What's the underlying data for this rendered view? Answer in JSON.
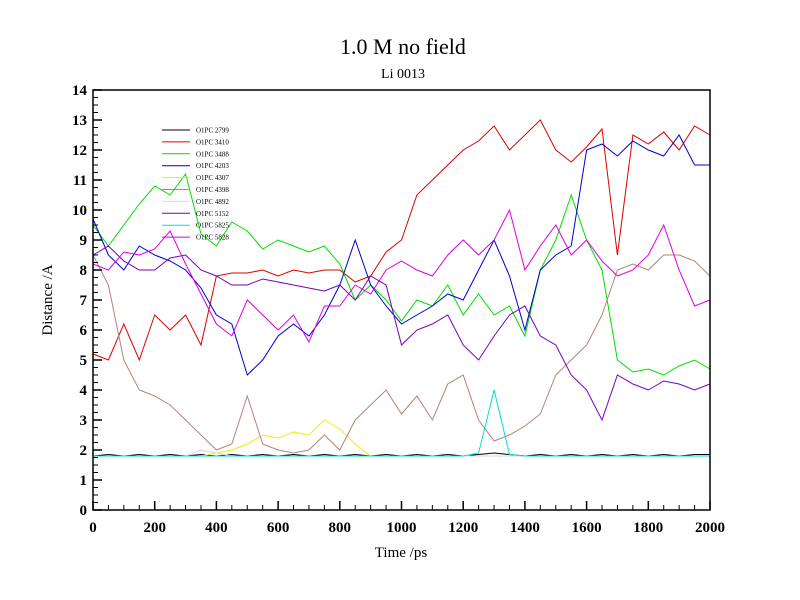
{
  "chart_data": {
    "type": "line",
    "title": "1.0 M no field",
    "subtitle": "Li 0013",
    "xlabel": "Time /ps",
    "ylabel": "Distance /A",
    "xlim": [
      0,
      2000
    ],
    "ylim": [
      0,
      14
    ],
    "xticks": [
      0,
      200,
      400,
      600,
      800,
      1000,
      1200,
      1400,
      1600,
      1800,
      2000
    ],
    "yticks": [
      0,
      1,
      2,
      3,
      4,
      5,
      6,
      7,
      8,
      9,
      10,
      11,
      12,
      13,
      14
    ],
    "grid": false,
    "legend_position": "top-left",
    "x": [
      0,
      50,
      100,
      150,
      200,
      250,
      300,
      350,
      400,
      450,
      500,
      550,
      600,
      650,
      700,
      750,
      800,
      850,
      900,
      950,
      1000,
      1050,
      1100,
      1150,
      1200,
      1250,
      1300,
      1350,
      1400,
      1450,
      1500,
      1550,
      1600,
      1650,
      1700,
      1750,
      1800,
      1850,
      1900,
      1950,
      2000
    ],
    "series": [
      {
        "name": "O1PC 2799",
        "color": "#000000",
        "values": [
          1.8,
          1.85,
          1.8,
          1.85,
          1.8,
          1.85,
          1.8,
          1.85,
          1.8,
          1.85,
          1.8,
          1.85,
          1.8,
          1.85,
          1.8,
          1.85,
          1.8,
          1.85,
          1.8,
          1.85,
          1.8,
          1.85,
          1.8,
          1.85,
          1.8,
          1.85,
          1.9,
          1.85,
          1.8,
          1.85,
          1.8,
          1.85,
          1.8,
          1.85,
          1.8,
          1.85,
          1.8,
          1.85,
          1.8,
          1.85,
          1.85
        ]
      },
      {
        "name": "O1PC 3410",
        "color": "#dd0000",
        "values": [
          5.2,
          5.0,
          6.2,
          5.0,
          6.5,
          6.0,
          6.5,
          5.5,
          7.8,
          7.9,
          7.9,
          8.0,
          7.8,
          8.0,
          7.9,
          8.0,
          8.0,
          7.6,
          7.8,
          8.6,
          9.0,
          10.5,
          11.0,
          11.5,
          12.0,
          12.3,
          12.8,
          12.0,
          12.5,
          13.0,
          12.0,
          11.6,
          12.1,
          12.7,
          8.5,
          12.5,
          12.2,
          12.6,
          12.0,
          12.8,
          12.5
        ]
      },
      {
        "name": "O1PC 3488",
        "color": "#00dd00",
        "values": [
          9.5,
          8.8,
          9.5,
          10.2,
          10.8,
          10.5,
          11.2,
          9.2,
          8.8,
          9.6,
          9.3,
          8.7,
          9.0,
          8.8,
          8.6,
          8.8,
          8.2,
          7.0,
          7.5,
          7.0,
          6.3,
          7.0,
          6.8,
          7.5,
          6.5,
          7.2,
          6.5,
          6.8,
          5.8,
          8.0,
          9.0,
          10.5,
          9.0,
          8.0,
          5.0,
          4.6,
          4.7,
          4.5,
          4.8,
          5.0,
          4.7
        ]
      },
      {
        "name": "O1PC 4203",
        "color": "#0000cc",
        "values": [
          9.7,
          8.5,
          8.0,
          8.8,
          8.5,
          8.3,
          8.0,
          7.4,
          6.5,
          6.2,
          4.5,
          5.0,
          5.8,
          6.2,
          5.8,
          6.5,
          7.5,
          9.0,
          7.5,
          6.8,
          6.2,
          6.5,
          6.8,
          7.2,
          7.0,
          8.0,
          9.0,
          7.8,
          6.0,
          8.0,
          8.5,
          8.8,
          12.0,
          12.2,
          11.8,
          12.3,
          12.0,
          11.8,
          12.5,
          11.5,
          11.5
        ]
      },
      {
        "name": "O1PC 4307",
        "color": "#eeee00",
        "values": [
          1.8,
          1.8,
          1.8,
          1.8,
          1.8,
          1.8,
          1.8,
          1.8,
          1.9,
          2.0,
          2.2,
          2.5,
          2.4,
          2.6,
          2.5,
          3.0,
          2.7,
          2.2,
          1.8,
          1.8,
          1.8,
          1.8,
          1.8,
          1.8,
          1.8,
          1.8,
          1.8,
          1.8,
          1.8,
          1.8,
          1.8,
          1.8,
          1.8,
          1.8,
          1.8,
          1.8,
          1.8,
          1.8,
          1.8,
          1.8,
          1.8
        ]
      },
      {
        "name": "O1PC 4398",
        "color": "#b8807a",
        "values": [
          8.5,
          7.5,
          5.0,
          4.0,
          3.8,
          3.5,
          3.0,
          2.5,
          2.0,
          2.2,
          3.8,
          2.2,
          2.0,
          1.9,
          2.0,
          2.5,
          2.0,
          3.0,
          3.5,
          4.0,
          3.2,
          3.8,
          3.0,
          4.2,
          4.5,
          3.0,
          2.3,
          2.5,
          2.8,
          3.2,
          4.5,
          5.0,
          5.5,
          6.5,
          8.0,
          8.2,
          8.0,
          8.5,
          8.5,
          8.3,
          7.8
        ]
      },
      {
        "name": "O1PC 4892",
        "color": "#d8d8d8",
        "values": [
          1.8,
          1.8,
          1.8,
          1.8,
          1.8,
          1.8,
          1.8,
          2.0,
          1.9,
          1.8,
          1.8,
          1.8,
          1.8,
          1.8,
          1.8,
          1.8,
          1.8,
          1.8,
          1.8,
          1.8,
          1.8,
          1.8,
          1.8,
          1.8,
          1.8,
          1.8,
          1.8,
          1.8,
          1.8,
          1.8,
          1.8,
          1.8,
          1.8,
          1.8,
          1.8,
          1.8,
          1.8,
          1.8,
          1.8,
          1.8,
          1.8
        ]
      },
      {
        "name": "O1PC 5152",
        "color": "#7700bb",
        "values": [
          8.5,
          8.8,
          8.3,
          8.0,
          8.0,
          8.4,
          8.5,
          8.0,
          7.8,
          7.5,
          7.5,
          7.7,
          7.6,
          7.5,
          7.4,
          7.3,
          7.5,
          7.0,
          7.8,
          7.5,
          5.5,
          6.0,
          6.2,
          6.5,
          5.5,
          5.0,
          5.8,
          6.5,
          6.8,
          5.8,
          5.5,
          4.5,
          4.0,
          3.0,
          4.5,
          4.2,
          4.0,
          4.3,
          4.2,
          4.0,
          4.2
        ]
      },
      {
        "name": "O1PC 5825",
        "color": "#00dddd",
        "values": [
          1.8,
          1.8,
          1.8,
          1.8,
          1.8,
          1.8,
          1.8,
          1.8,
          1.8,
          1.8,
          1.8,
          1.8,
          1.8,
          1.8,
          1.8,
          1.8,
          1.8,
          1.8,
          1.8,
          1.8,
          1.8,
          1.8,
          1.8,
          1.8,
          1.8,
          1.9,
          4.0,
          1.85,
          1.8,
          1.8,
          1.8,
          1.8,
          1.8,
          1.8,
          1.8,
          1.8,
          1.8,
          1.8,
          1.8,
          1.8,
          1.8
        ]
      },
      {
        "name": "O1PC 5828",
        "color": "#dd00dd",
        "values": [
          8.2,
          8.0,
          8.6,
          8.5,
          8.7,
          9.3,
          8.2,
          7.2,
          6.2,
          5.8,
          7.0,
          6.5,
          6.0,
          6.5,
          5.6,
          6.8,
          6.8,
          7.5,
          7.2,
          8.0,
          8.3,
          8.0,
          7.8,
          8.5,
          9.0,
          8.5,
          9.0,
          10.0,
          8.0,
          8.8,
          9.5,
          8.5,
          9.0,
          8.3,
          7.8,
          8.0,
          8.5,
          9.5,
          8.0,
          6.8,
          7.0
        ]
      }
    ]
  }
}
